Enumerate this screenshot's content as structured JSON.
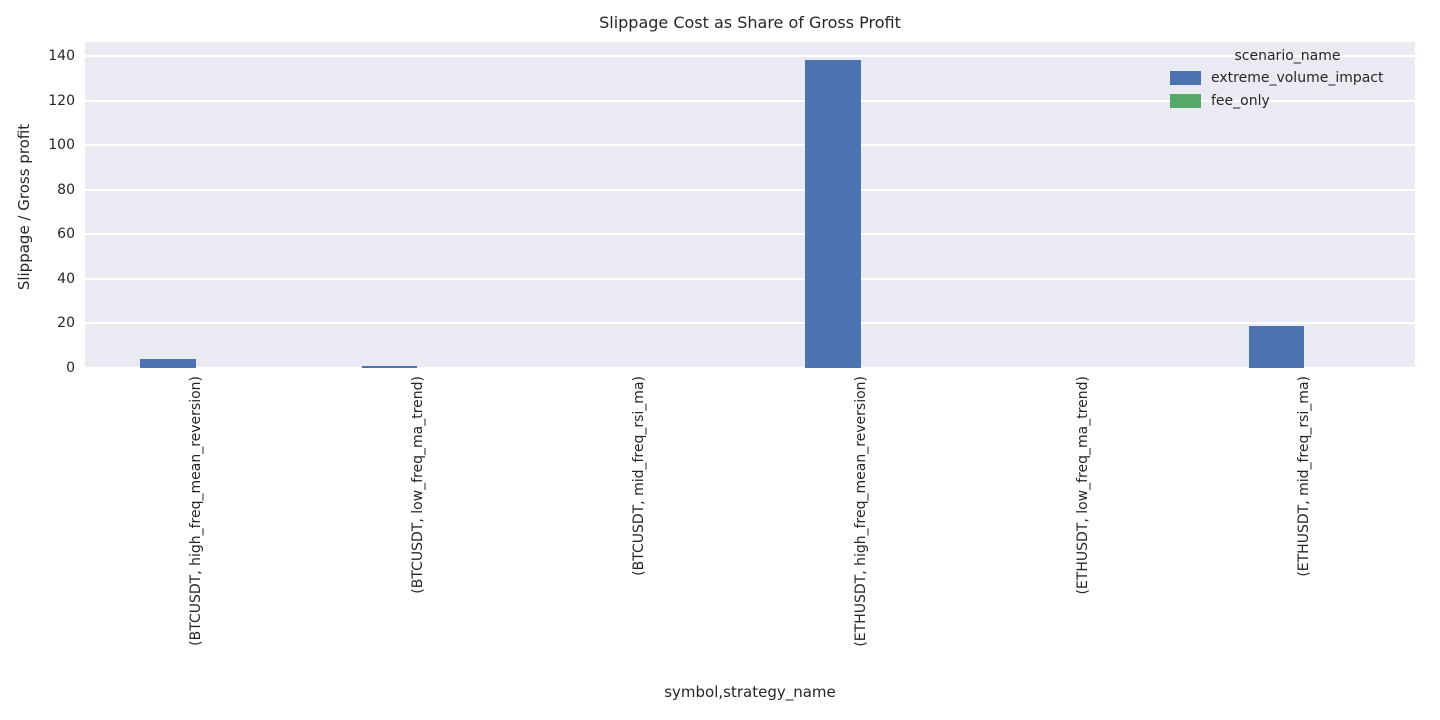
{
  "chart_data": {
    "type": "bar",
    "title": "Slippage Cost as Share of Gross Profit",
    "xlabel": "symbol,strategy_name",
    "ylabel": "Slippage / Gross profit",
    "legend_title": "scenario_name",
    "legend_position": "upper right",
    "grid": true,
    "plot_bg_color": "#eaeaf2",
    "grid_color": "#ffffff",
    "categories": [
      "(BTCUSDT, high_freq_mean_reversion)",
      "(BTCUSDT, low_freq_ma_trend)",
      "(BTCUSDT, mid_freq_rsi_ma)",
      "(ETHUSDT, high_freq_mean_reversion)",
      "(ETHUSDT, low_freq_ma_trend)",
      "(ETHUSDT, mid_freq_rsi_ma)"
    ],
    "series": [
      {
        "name": "extreme_volume_impact",
        "color": "#4c72b0",
        "values": [
          4,
          1,
          0,
          138,
          0,
          19
        ]
      },
      {
        "name": "fee_only",
        "color": "#55a868",
        "values": [
          0,
          0,
          0,
          0,
          0,
          0
        ]
      }
    ],
    "ylim": [
      0,
      140
    ],
    "yticks": [
      0,
      20,
      40,
      60,
      80,
      100,
      120,
      140
    ]
  }
}
